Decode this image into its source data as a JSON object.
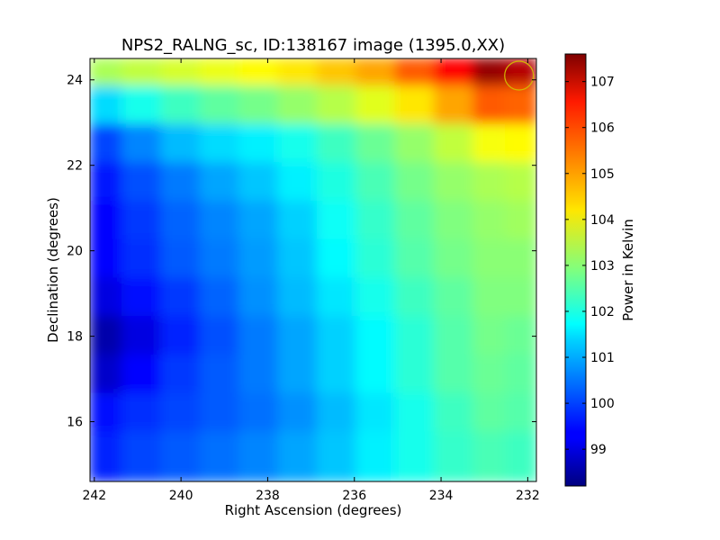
{
  "chart_data": {
    "type": "heatmap",
    "title": "NPS2_RALNG_sc, ID:138167 image (1395.0,XX)",
    "xlabel": "Right Ascension (degrees)",
    "ylabel": "Declination (degrees)",
    "colorbar_label": "Power in Kelvin",
    "colormap": "jet",
    "xlim": [
      242.1,
      231.8
    ],
    "ylim": [
      14.6,
      24.5
    ],
    "x_ticks": [
      242,
      240,
      238,
      236,
      234,
      232
    ],
    "y_ticks": [
      16,
      18,
      20,
      22,
      24
    ],
    "colorbar_range": [
      98.2,
      107.6
    ],
    "colorbar_ticks": [
      99,
      100,
      101,
      102,
      103,
      104,
      105,
      106,
      107
    ],
    "x": [
      241.8,
      240.9,
      240.0,
      239.1,
      238.2,
      237.3,
      236.4,
      235.5,
      234.6,
      233.7,
      232.8,
      232.2
    ],
    "y": [
      24.3,
      23.4,
      22.5,
      21.6,
      20.7,
      19.8,
      18.9,
      18.0,
      17.1,
      16.2,
      15.3
    ],
    "z": [
      [
        103.3,
        103.5,
        103.7,
        103.9,
        104.1,
        104.3,
        104.6,
        104.9,
        105.6,
        106.4,
        107.4,
        107.1
      ],
      [
        101.4,
        101.9,
        102.3,
        102.6,
        102.8,
        103.1,
        103.4,
        103.8,
        104.3,
        104.9,
        105.6,
        105.5
      ],
      [
        100.0,
        100.6,
        101.1,
        101.4,
        101.6,
        101.9,
        102.3,
        102.7,
        103.1,
        103.5,
        104.0,
        104.1
      ],
      [
        99.6,
        100.1,
        100.5,
        100.9,
        101.2,
        101.6,
        102.0,
        102.4,
        102.8,
        103.1,
        103.3,
        103.4
      ],
      [
        99.4,
        99.9,
        100.3,
        100.6,
        100.9,
        101.3,
        101.8,
        102.2,
        102.6,
        102.9,
        103.1,
        103.2
      ],
      [
        99.4,
        99.8,
        100.2,
        100.5,
        100.8,
        101.2,
        101.7,
        102.1,
        102.5,
        102.8,
        103.0,
        103.0
      ],
      [
        99.1,
        99.5,
        99.9,
        100.3,
        100.7,
        101.1,
        101.5,
        101.9,
        102.3,
        102.6,
        102.9,
        102.9
      ],
      [
        98.6,
        99.1,
        99.7,
        100.1,
        100.5,
        100.9,
        101.3,
        101.7,
        102.1,
        102.5,
        102.8,
        102.7
      ],
      [
        98.9,
        99.4,
        99.9,
        100.2,
        100.5,
        100.9,
        101.3,
        101.7,
        102.1,
        102.5,
        102.7,
        102.6
      ],
      [
        99.5,
        99.8,
        100.0,
        100.2,
        100.4,
        100.7,
        101.1,
        101.5,
        101.9,
        102.3,
        102.6,
        102.5
      ],
      [
        99.7,
        100.0,
        100.2,
        100.4,
        100.6,
        100.9,
        101.2,
        101.6,
        101.9,
        102.2,
        102.4,
        102.3
      ]
    ],
    "marker": {
      "shape": "circle",
      "ra": 232.2,
      "dec": 24.1,
      "color": "#d4b800"
    }
  }
}
